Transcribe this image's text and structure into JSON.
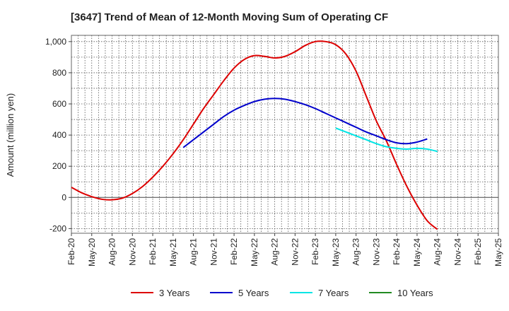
{
  "chart_data": {
    "type": "line",
    "title": "[3647]  Trend of Mean of 12-Month Moving Sum of Operating CF",
    "ylabel": "Amount (million yen)",
    "xlabel": "",
    "ylim": [
      -230,
      1040
    ],
    "yticks": [
      -200,
      0,
      200,
      400,
      600,
      800,
      1000
    ],
    "ytick_labels": [
      "-200",
      "0",
      "200",
      "400",
      "600",
      "800",
      "1,000"
    ],
    "x_tick_labels": [
      "Feb-20",
      "May-20",
      "Aug-20",
      "Nov-20",
      "Feb-21",
      "May-21",
      "Aug-21",
      "Nov-21",
      "Feb-22",
      "May-22",
      "Aug-22",
      "Nov-22",
      "Feb-23",
      "May-23",
      "Aug-23",
      "Nov-23",
      "Feb-24",
      "May-24",
      "Aug-24",
      "Nov-24",
      "Feb-25",
      "May-25"
    ],
    "grid": true,
    "legend_position": "bottom",
    "series": [
      {
        "name": "3 Years",
        "color": "#dd0000",
        "points": [
          [
            0,
            65
          ],
          [
            0.5,
            30
          ],
          [
            1,
            5
          ],
          [
            1.5,
            -12
          ],
          [
            2,
            -15
          ],
          [
            2.5,
            -5
          ],
          [
            3,
            25
          ],
          [
            3.5,
            70
          ],
          [
            4,
            130
          ],
          [
            4.5,
            200
          ],
          [
            5,
            280
          ],
          [
            5.5,
            370
          ],
          [
            6,
            470
          ],
          [
            6.5,
            570
          ],
          [
            7,
            660
          ],
          [
            7.5,
            750
          ],
          [
            8,
            830
          ],
          [
            8.5,
            885
          ],
          [
            9,
            910
          ],
          [
            9.5,
            905
          ],
          [
            10,
            895
          ],
          [
            10.5,
            905
          ],
          [
            11,
            935
          ],
          [
            11.5,
            975
          ],
          [
            12,
            1000
          ],
          [
            12.5,
            1000
          ],
          [
            13,
            980
          ],
          [
            13.5,
            920
          ],
          [
            14,
            810
          ],
          [
            14.5,
            650
          ],
          [
            15,
            490
          ],
          [
            15.5,
            360
          ],
          [
            16,
            210
          ],
          [
            16.5,
            70
          ],
          [
            17,
            -50
          ],
          [
            17.5,
            -150
          ],
          [
            18,
            -205
          ]
        ]
      },
      {
        "name": "5 Years",
        "color": "#0000cc",
        "points": [
          [
            5.5,
            320
          ],
          [
            6,
            370
          ],
          [
            6.5,
            420
          ],
          [
            7,
            470
          ],
          [
            7.5,
            520
          ],
          [
            8,
            560
          ],
          [
            8.5,
            590
          ],
          [
            9,
            615
          ],
          [
            9.5,
            630
          ],
          [
            10,
            635
          ],
          [
            10.5,
            630
          ],
          [
            11,
            615
          ],
          [
            11.5,
            595
          ],
          [
            12,
            570
          ],
          [
            12.5,
            540
          ],
          [
            13,
            510
          ],
          [
            13.5,
            480
          ],
          [
            14,
            450
          ],
          [
            14.5,
            420
          ],
          [
            15,
            395
          ],
          [
            15.5,
            370
          ],
          [
            16,
            350
          ],
          [
            16.5,
            345
          ],
          [
            17,
            355
          ],
          [
            17.5,
            375
          ]
        ]
      },
      {
        "name": "7 Years",
        "color": "#00e5e5",
        "points": [
          [
            13,
            445
          ],
          [
            13.5,
            420
          ],
          [
            14,
            395
          ],
          [
            14.5,
            370
          ],
          [
            15,
            345
          ],
          [
            15.5,
            325
          ],
          [
            16,
            315
          ],
          [
            16.5,
            310
          ],
          [
            17,
            315
          ],
          [
            17.5,
            310
          ],
          [
            18,
            295
          ]
        ]
      },
      {
        "name": "10 Years",
        "color": "#228b22",
        "points": []
      }
    ]
  }
}
